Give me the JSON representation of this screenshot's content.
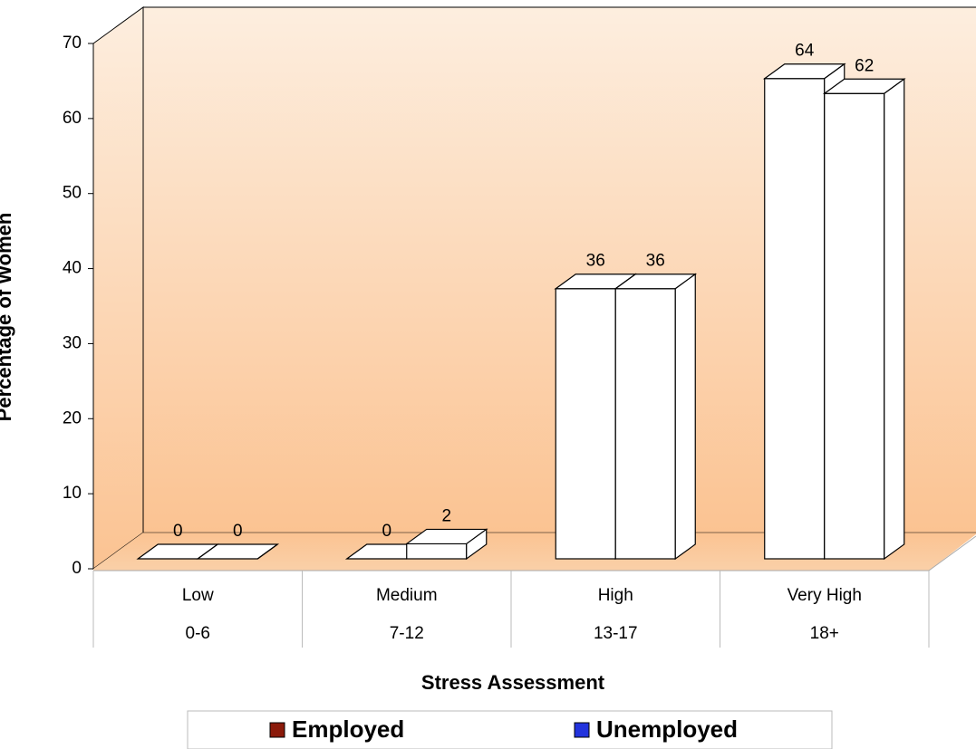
{
  "chart_data": {
    "type": "bar3d",
    "y_axis_label": "Percentage of Women",
    "x_axis_label": "Stress Assessment",
    "categories": [
      "Low",
      "Medium",
      "High",
      "Very High"
    ],
    "sublabels": [
      "0-6",
      "7-12",
      "13-17",
      "18+"
    ],
    "series": [
      {
        "name": "Employed",
        "color": "#8b1a0a",
        "values": [
          0,
          0,
          36,
          64
        ]
      },
      {
        "name": "Unemployed",
        "color": "#2233dd",
        "values": [
          0,
          2,
          36,
          62
        ]
      }
    ],
    "bar_fill": "#ffffff",
    "ylim": [
      0,
      70
    ],
    "yticks": [
      0,
      10,
      20,
      30,
      40,
      50,
      60,
      70
    ],
    "legend": "bottom"
  }
}
